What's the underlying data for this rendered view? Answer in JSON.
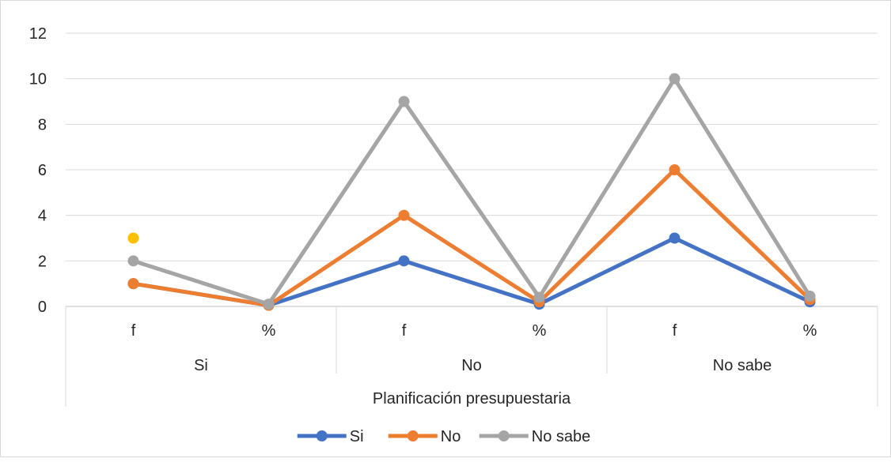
{
  "chart_data": {
    "type": "line",
    "title": "",
    "ylabel": "",
    "xlabel": "Planificación presupuestaria",
    "ylim": [
      0,
      12
    ],
    "yticks": [
      0,
      2,
      4,
      6,
      8,
      10,
      12
    ],
    "grid": true,
    "legend_position": "bottom",
    "categories": [
      "f",
      "%",
      "f",
      "%",
      "f",
      "%"
    ],
    "groups": [
      {
        "label": "Si",
        "span": [
          0,
          1
        ]
      },
      {
        "label": "No",
        "span": [
          2,
          3
        ]
      },
      {
        "label": "No sabe",
        "span": [
          4,
          5
        ]
      }
    ],
    "series": [
      {
        "name": "Si",
        "color": "#4472c4",
        "values": [
          1,
          0.05,
          2,
          0.1,
          3,
          0.2
        ]
      },
      {
        "name": "No",
        "color": "#ed7d31",
        "values": [
          1,
          0.05,
          4,
          0.2,
          6,
          0.3
        ]
      },
      {
        "name": "No sabe",
        "color": "#a5a5a5",
        "values": [
          2,
          0.1,
          9,
          0.4,
          10,
          0.45
        ]
      }
    ],
    "extra_points": [
      {
        "category_index": 0,
        "value": 3,
        "color": "#ffc000"
      }
    ]
  }
}
